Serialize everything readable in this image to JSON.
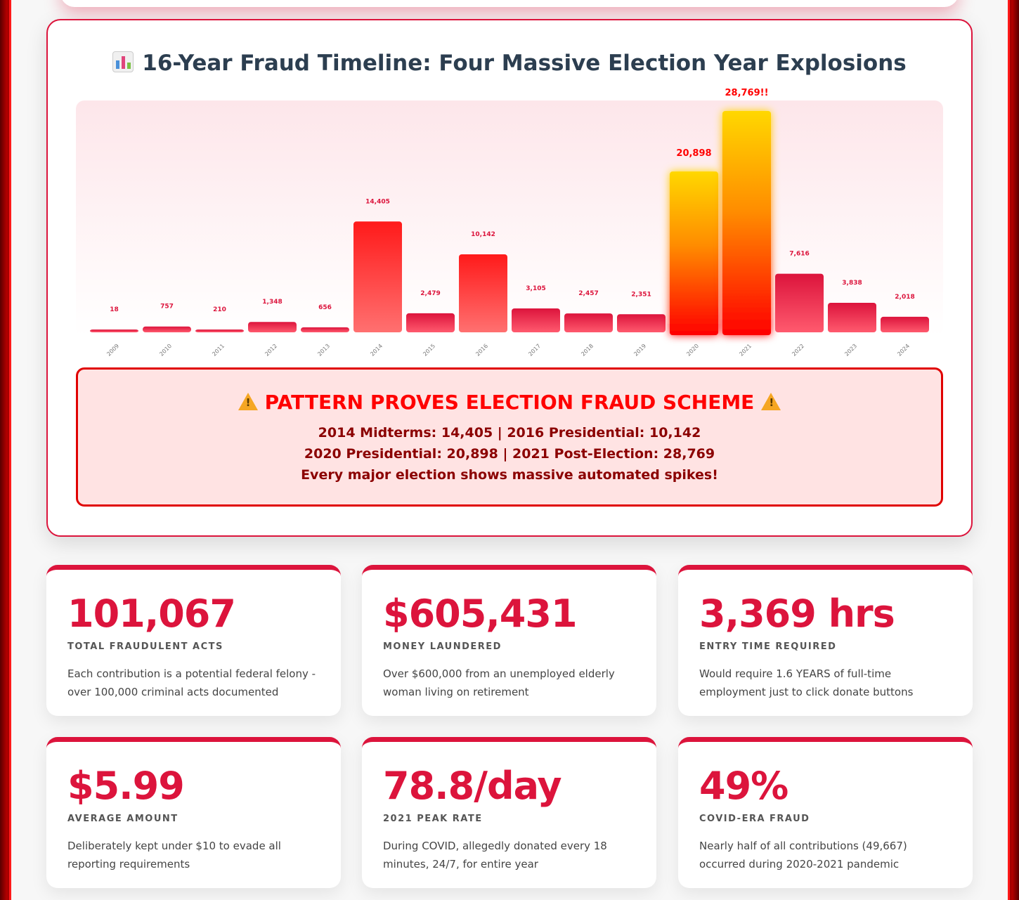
{
  "chart": {
    "title": "16-Year Fraud Timeline: Four Massive Election Year Explosions",
    "icon": "bar-chart-icon"
  },
  "chart_data": {
    "type": "bar",
    "title": "16-Year Fraud Timeline: Four Massive Election Year Explosions",
    "categories": [
      "2009",
      "2010",
      "2011",
      "2012",
      "2013",
      "2014",
      "2015",
      "2016",
      "2017",
      "2018",
      "2019",
      "2020",
      "2021",
      "2022",
      "2023",
      "2024"
    ],
    "values": [
      18,
      757,
      210,
      1348,
      656,
      14405,
      2479,
      10142,
      3105,
      2457,
      2351,
      20898,
      28769,
      7616,
      3838,
      2018
    ],
    "data_labels": [
      "18",
      "757",
      "210",
      "1,348",
      "656",
      "14,405",
      "2,479",
      "10,142",
      "3,105",
      "2,457",
      "2,351",
      "20,898",
      "28,769!!",
      "7,616",
      "3,838",
      "2,018"
    ],
    "highlighted": [
      "2020",
      "2021"
    ],
    "ylim": [
      0,
      28769
    ],
    "xlabel": "",
    "ylabel": "",
    "grid": false,
    "colors": {
      "normal": "#dc143c",
      "election": "#ff1a1a",
      "highlight_top": "#ffd700",
      "highlight_bottom": "#ff0000"
    }
  },
  "alert": {
    "title": "PATTERN PROVES ELECTION FRAUD SCHEME",
    "lines": [
      "2014 Midterms: 14,405 | 2016 Presidential: 10,142",
      "2020 Presidential: 20,898 | 2021 Post-Election: 28,769",
      "Every major election shows massive automated spikes!"
    ]
  },
  "stats": [
    {
      "value": "101,067",
      "label": "TOTAL FRAUDULENT ACTS",
      "desc": "Each contribution is a potential federal felony - over 100,000 criminal acts documented"
    },
    {
      "value": "$605,431",
      "label": "MONEY LAUNDERED",
      "desc": "Over $600,000 from an unemployed elderly woman living on retirement"
    },
    {
      "value": "3,369 hrs",
      "label": "ENTRY TIME REQUIRED",
      "desc": "Would require 1.6 YEARS of full-time employment just to click donate buttons"
    },
    {
      "value": "$5.99",
      "label": "AVERAGE AMOUNT",
      "desc": "Deliberately kept under $10 to evade all reporting requirements"
    },
    {
      "value": "78.8/day",
      "label": "2021 PEAK RATE",
      "desc": "During COVID, allegedly donated every 18 minutes, 24/7, for entire year"
    },
    {
      "value": "49%",
      "label": "COVID-ERA FRAUD",
      "desc": "Nearly half of all contributions (49,667) occurred during 2020-2021 pandemic"
    }
  ]
}
